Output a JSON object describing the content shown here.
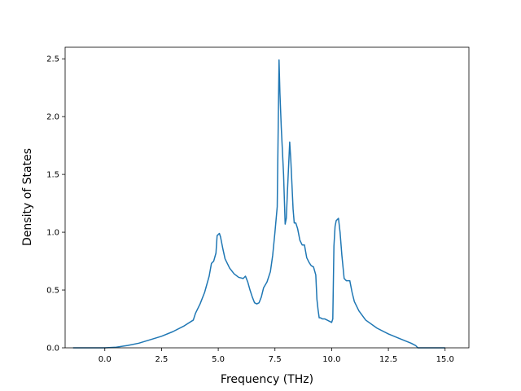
{
  "chart_data": {
    "type": "line",
    "title": "",
    "xlabel": "Frequency (THz)",
    "ylabel": "Density of States",
    "xlim": [
      -1.75,
      16.05
    ],
    "ylim": [
      0.0,
      2.6
    ],
    "xticks": [
      0.0,
      2.5,
      5.0,
      7.5,
      10.0,
      12.5,
      15.0
    ],
    "xtick_labels": [
      "0.0",
      "2.5",
      "5.0",
      "7.5",
      "10.0",
      "12.5",
      "15.0"
    ],
    "yticks": [
      0.0,
      0.5,
      1.0,
      1.5,
      2.0,
      2.5
    ],
    "ytick_labels": [
      "0.0",
      "0.5",
      "1.0",
      "1.5",
      "2.0",
      "2.5"
    ],
    "grid": false,
    "legend": "none",
    "line_color": "#1f77b4",
    "series": [
      {
        "x": [
          -1.4,
          -0.5,
          0.0,
          0.5,
          1.0,
          1.5,
          2.0,
          2.5,
          3.0,
          3.5,
          3.9,
          4.0,
          4.2,
          4.4,
          4.6,
          4.7,
          4.8,
          4.9,
          4.95,
          5.05,
          5.1,
          5.2,
          5.3,
          5.5,
          5.7,
          5.9,
          6.1,
          6.2,
          6.3,
          6.4,
          6.5,
          6.6,
          6.7,
          6.8,
          6.9,
          7.0,
          7.15,
          7.3,
          7.4,
          7.5,
          7.6,
          7.68,
          7.72,
          7.78,
          7.83,
          7.88,
          7.95,
          8.0,
          8.05,
          8.15,
          8.2,
          8.3,
          8.35,
          8.42,
          8.5,
          8.6,
          8.7,
          8.8,
          8.9,
          9.0,
          9.1,
          9.2,
          9.3,
          9.35,
          9.4,
          9.45,
          9.5,
          9.6,
          9.7,
          9.8,
          10.0,
          10.05,
          10.1,
          10.15,
          10.2,
          10.3,
          10.37,
          10.45,
          10.55,
          10.65,
          10.8,
          10.9,
          11.0,
          11.2,
          11.5,
          12.0,
          12.5,
          13.0,
          13.5,
          13.7,
          13.8,
          14.0,
          15.0
        ],
        "y": [
          0.0,
          0.0,
          0.0,
          0.005,
          0.02,
          0.04,
          0.07,
          0.1,
          0.14,
          0.19,
          0.24,
          0.3,
          0.38,
          0.48,
          0.62,
          0.73,
          0.75,
          0.82,
          0.97,
          0.99,
          0.96,
          0.86,
          0.77,
          0.69,
          0.64,
          0.61,
          0.6,
          0.62,
          0.57,
          0.5,
          0.44,
          0.39,
          0.38,
          0.39,
          0.44,
          0.52,
          0.57,
          0.66,
          0.8,
          1.0,
          1.22,
          2.49,
          2.2,
          1.9,
          1.7,
          1.5,
          1.07,
          1.12,
          1.35,
          1.78,
          1.62,
          1.2,
          1.08,
          1.08,
          1.03,
          0.93,
          0.89,
          0.89,
          0.78,
          0.74,
          0.71,
          0.7,
          0.63,
          0.42,
          0.33,
          0.26,
          0.26,
          0.25,
          0.25,
          0.24,
          0.22,
          0.25,
          0.88,
          1.05,
          1.1,
          1.12,
          1.0,
          0.8,
          0.6,
          0.58,
          0.58,
          0.48,
          0.4,
          0.32,
          0.24,
          0.17,
          0.12,
          0.08,
          0.04,
          0.02,
          0.0,
          0.0,
          0.0
        ]
      }
    ]
  }
}
